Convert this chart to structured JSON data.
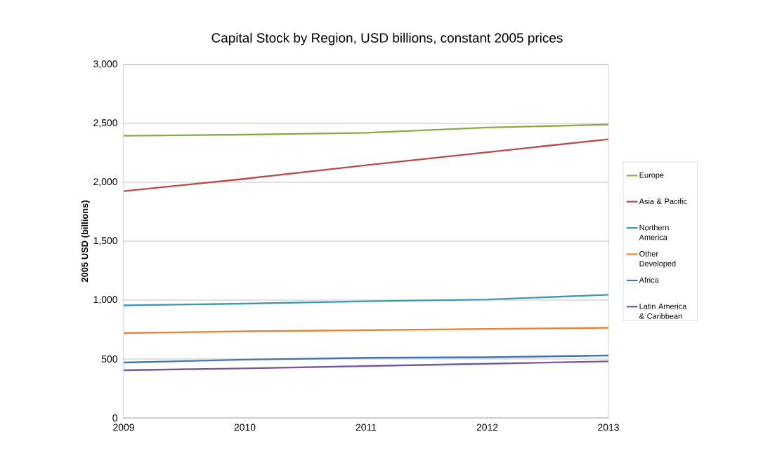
{
  "chart_data": {
    "type": "line",
    "title": "Capital Stock by Region, USD billions, constant 2005 prices",
    "ylabel": "2005 USD (billions)",
    "x": [
      2009,
      2010,
      2011,
      2012,
      2013
    ],
    "xlim": [
      2009,
      2013
    ],
    "xticks": [
      2009,
      2010,
      2011,
      2012,
      2013
    ],
    "ylim": [
      0,
      3000
    ],
    "yticks": [
      0,
      {
        "value": 500,
        "label": "500"
      },
      {
        "value": 1000,
        "label": "1,000"
      },
      {
        "value": 1500,
        "label": "1,500"
      },
      {
        "value": 2000,
        "label": "2,000"
      },
      {
        "value": 2500,
        "label": "2,500"
      },
      {
        "value": 3000,
        "label": "3,000"
      }
    ],
    "grid": "y",
    "legend": "right",
    "marker": "none",
    "line_style": "solid",
    "series": [
      {
        "name": "Europe",
        "color": "#8aaa48",
        "values": [
          2395,
          2405,
          2420,
          2465,
          2490
        ]
      },
      {
        "name": "Asia & Pacific",
        "color": "#b94a47",
        "values": [
          1925,
          2030,
          2145,
          2255,
          2365
        ]
      },
      {
        "name": "Northern America",
        "color": "#3b9ab2",
        "values": [
          955,
          970,
          990,
          1005,
          1045
        ]
      },
      {
        "name": "Other Developed",
        "color": "#e5843a",
        "values": [
          720,
          735,
          745,
          755,
          765
        ]
      },
      {
        "name": "Africa",
        "color": "#4274b0",
        "values": [
          470,
          495,
          510,
          515,
          530
        ]
      },
      {
        "name": "Latin America & Caribbean",
        "color": "#77579a",
        "values": [
          405,
          420,
          440,
          460,
          480
        ]
      }
    ]
  }
}
